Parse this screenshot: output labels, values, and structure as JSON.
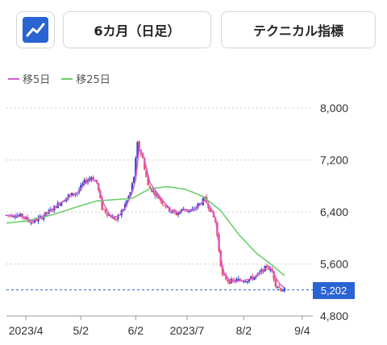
{
  "toolbar": {
    "chart_type_icon": "line-chart-icon",
    "period_label": "6カ月（日足）",
    "technical_label": "テクニカル指標"
  },
  "legend": [
    {
      "label": "移5日",
      "color": "#d65fd8"
    },
    {
      "label": "移25日",
      "color": "#6ccf6c"
    }
  ],
  "colors": {
    "up": "#3848c8",
    "down": "#e8506a",
    "ma5": "#d65fd8",
    "ma25": "#6ccf6c",
    "grid": "#d0d0d0",
    "last_price": "#2a63d2"
  },
  "last_price": {
    "value": 5202,
    "label": "5,202"
  },
  "chart_data": {
    "type": "candlestick",
    "x_ticks": [
      "2023/4",
      "5/2",
      "6/2",
      "2023/7",
      "8/2",
      "9/4"
    ],
    "x_tick_days": [
      0,
      31,
      62,
      91,
      123,
      156
    ],
    "x_range": [
      -11,
      162
    ],
    "y_ticks": [
      8000,
      7200,
      6400,
      5600,
      4800
    ],
    "y_tick_labels": [
      "8,000",
      "7,200",
      "6,400",
      "5,600",
      "4,800"
    ],
    "ylim": [
      4800,
      8000
    ],
    "grid": true,
    "ohlc_anchors": [
      [
        -11,
        6350
      ],
      [
        -6,
        6360
      ],
      [
        -2,
        6330
      ],
      [
        3,
        6240
      ],
      [
        8,
        6310
      ],
      [
        14,
        6420
      ],
      [
        19,
        6540
      ],
      [
        24,
        6650
      ],
      [
        29,
        6700
      ],
      [
        33,
        6860
      ],
      [
        37,
        6940
      ],
      [
        40,
        6850
      ],
      [
        43,
        6460
      ],
      [
        47,
        6350
      ],
      [
        51,
        6280
      ],
      [
        55,
        6450
      ],
      [
        59,
        6700
      ],
      [
        61,
        6950
      ],
      [
        63,
        7450
      ],
      [
        66,
        7220
      ],
      [
        69,
        6800
      ],
      [
        73,
        6680
      ],
      [
        77,
        6550
      ],
      [
        81,
        6430
      ],
      [
        85,
        6370
      ],
      [
        89,
        6450
      ],
      [
        93,
        6400
      ],
      [
        97,
        6500
      ],
      [
        101,
        6600
      ],
      [
        104,
        6440
      ],
      [
        107,
        6250
      ],
      [
        110,
        5600
      ],
      [
        111,
        5420
      ],
      [
        115,
        5330
      ],
      [
        120,
        5350
      ],
      [
        126,
        5360
      ],
      [
        131,
        5430
      ],
      [
        136,
        5560
      ],
      [
        139,
        5480
      ],
      [
        141,
        5290
      ],
      [
        144,
        5210
      ],
      [
        146,
        5202
      ]
    ],
    "ma5_anchors": [
      [
        -11,
        6350
      ],
      [
        -6,
        6340
      ],
      [
        0,
        6320
      ],
      [
        3,
        6260
      ],
      [
        8,
        6300
      ],
      [
        14,
        6420
      ],
      [
        19,
        6530
      ],
      [
        24,
        6620
      ],
      [
        29,
        6690
      ],
      [
        33,
        6830
      ],
      [
        37,
        6900
      ],
      [
        40,
        6880
      ],
      [
        44,
        6520
      ],
      [
        48,
        6320
      ],
      [
        52,
        6330
      ],
      [
        56,
        6450
      ],
      [
        60,
        6700
      ],
      [
        62,
        6900
      ],
      [
        64,
        7380
      ],
      [
        67,
        7200
      ],
      [
        70,
        6850
      ],
      [
        74,
        6700
      ],
      [
        78,
        6550
      ],
      [
        82,
        6430
      ],
      [
        86,
        6390
      ],
      [
        90,
        6440
      ],
      [
        94,
        6420
      ],
      [
        98,
        6500
      ],
      [
        101,
        6580
      ],
      [
        104,
        6480
      ],
      [
        107,
        6310
      ],
      [
        110,
        5700
      ],
      [
        112,
        5450
      ],
      [
        116,
        5330
      ],
      [
        122,
        5340
      ],
      [
        128,
        5380
      ],
      [
        133,
        5480
      ],
      [
        137,
        5570
      ],
      [
        140,
        5450
      ],
      [
        143,
        5300
      ],
      [
        146,
        5230
      ]
    ],
    "ma25_anchors": [
      [
        -11,
        6230
      ],
      [
        0,
        6260
      ],
      [
        10,
        6320
      ],
      [
        20,
        6400
      ],
      [
        30,
        6490
      ],
      [
        40,
        6570
      ],
      [
        50,
        6590
      ],
      [
        60,
        6610
      ],
      [
        70,
        6760
      ],
      [
        80,
        6790
      ],
      [
        90,
        6750
      ],
      [
        100,
        6640
      ],
      [
        110,
        6420
      ],
      [
        120,
        6060
      ],
      [
        130,
        5770
      ],
      [
        140,
        5560
      ],
      [
        146,
        5420
      ]
    ]
  }
}
